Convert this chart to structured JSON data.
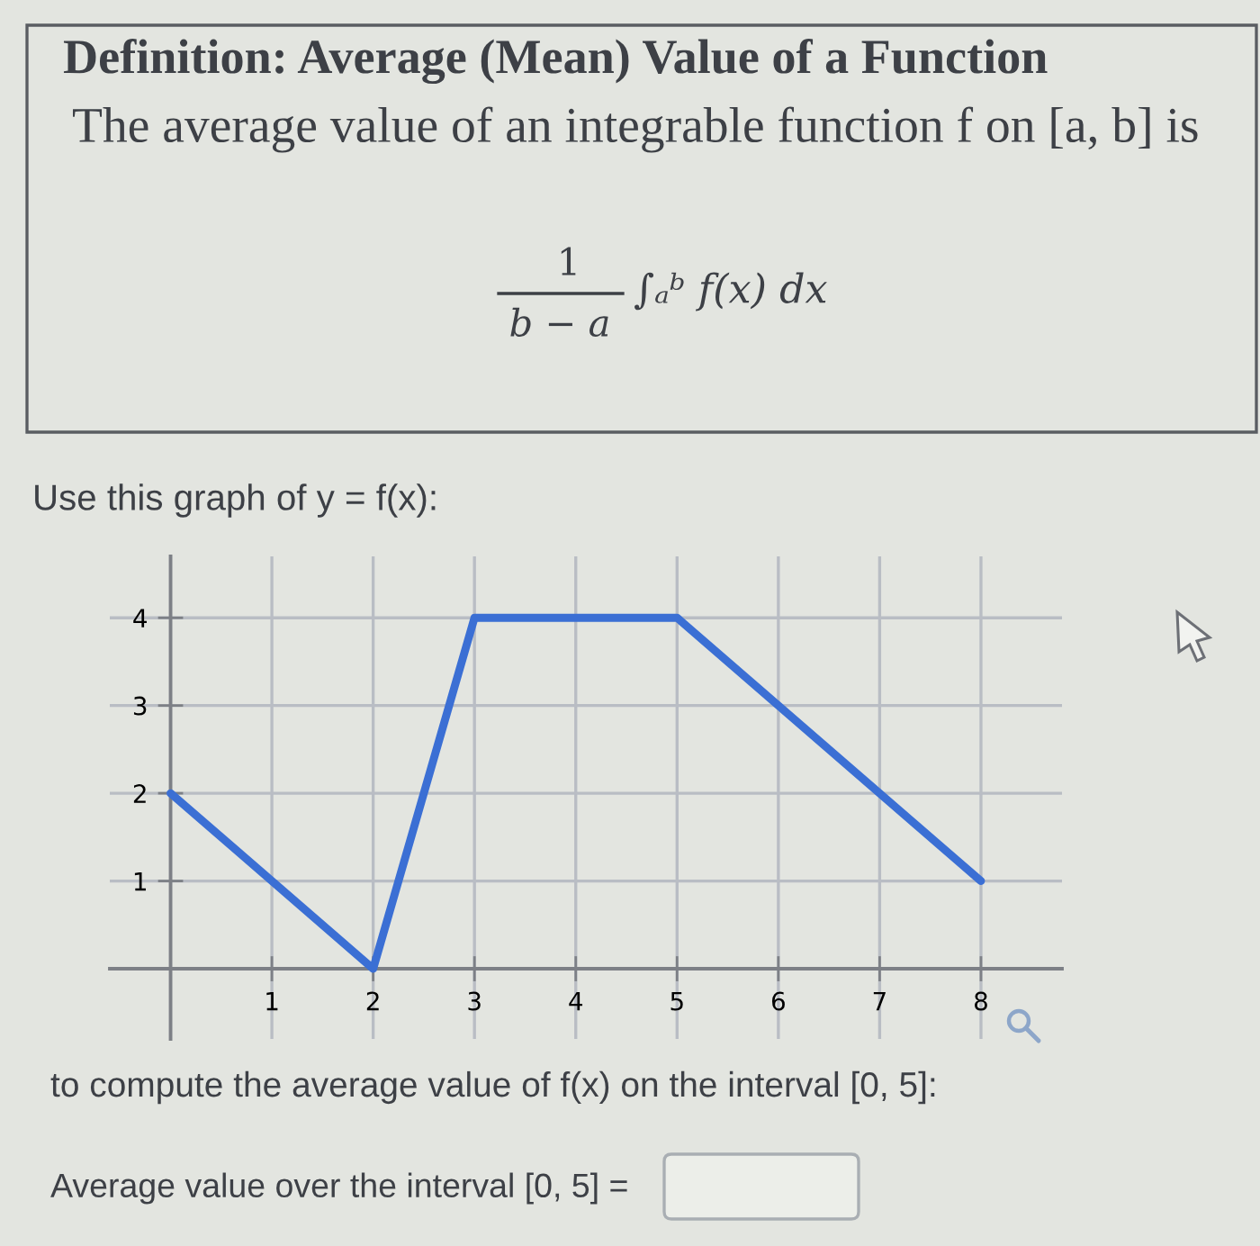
{
  "chart_data": {
    "type": "line",
    "title": "Definition: Average (Mean) Value of a Function",
    "subtitle": "The average value of an integrable function f on [a, b] is",
    "annotations": [
      "1",
      "b − a",
      "∫ₐᵇ f(x) dx",
      "Use this graph of y = f(x):",
      "to compute the average value of f(x) on the interval [0, 5]:",
      "Average value over the interval [0, 5] ="
    ],
    "x": [
      0,
      2,
      3,
      5,
      8
    ],
    "series": [
      {
        "color": "#3b6fd4",
        "values": [
          2,
          0,
          4,
          4,
          1
        ]
      }
    ],
    "xlim": [
      -0.6,
      8.8
    ],
    "ylim": [
      -0.8,
      4.7
    ],
    "xticks": [
      1,
      2,
      3,
      4,
      5,
      6,
      7,
      8
    ],
    "yticks": [
      1,
      2,
      3,
      4
    ],
    "grid": true,
    "marker": "none",
    "line_style": "solid"
  }
}
